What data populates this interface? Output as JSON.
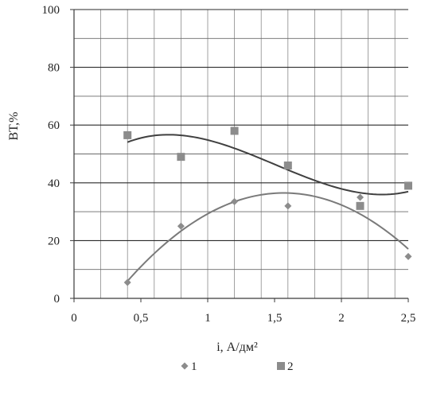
{
  "chart_data": {
    "type": "scatter",
    "title": "",
    "xlabel": "i, А/дм²",
    "ylabel": "ВТ,%",
    "xlim": [
      0,
      2.5
    ],
    "ylim": [
      0,
      100
    ],
    "x_ticks": [
      {
        "value": 0,
        "label": "0"
      },
      {
        "value": 0.5,
        "label": "0,5"
      },
      {
        "value": 1,
        "label": "1"
      },
      {
        "value": 1.5,
        "label": "1,5"
      },
      {
        "value": 2,
        "label": "2"
      },
      {
        "value": 2.5,
        "label": "2,5"
      }
    ],
    "y_ticks": [
      {
        "value": 0,
        "label": "0"
      },
      {
        "value": 20,
        "label": "20"
      },
      {
        "value": 40,
        "label": "40"
      },
      {
        "value": 60,
        "label": "60"
      },
      {
        "value": 80,
        "label": "80"
      },
      {
        "value": 100,
        "label": "100"
      }
    ],
    "x_minor_step": 0.2,
    "y_minor_step": 10,
    "grid": true,
    "legend_position": "bottom",
    "series": [
      {
        "name": "1",
        "marker": "diamond",
        "marker_color": "#8c8c8c",
        "trend_color": "#7a7a7a",
        "trendline": "polynomial",
        "x": [
          0.4,
          0.8,
          1.2,
          1.6,
          2.14,
          2.5
        ],
        "y": [
          5.5,
          25,
          33.5,
          32,
          35,
          14.5
        ]
      },
      {
        "name": "2",
        "marker": "square",
        "marker_color": "#8c8c8c",
        "trend_color": "#404040",
        "trendline": "polynomial",
        "x": [
          0.4,
          0.8,
          1.2,
          1.6,
          2.14,
          2.5
        ],
        "y": [
          56.5,
          49,
          58,
          46,
          32,
          39
        ]
      }
    ]
  }
}
